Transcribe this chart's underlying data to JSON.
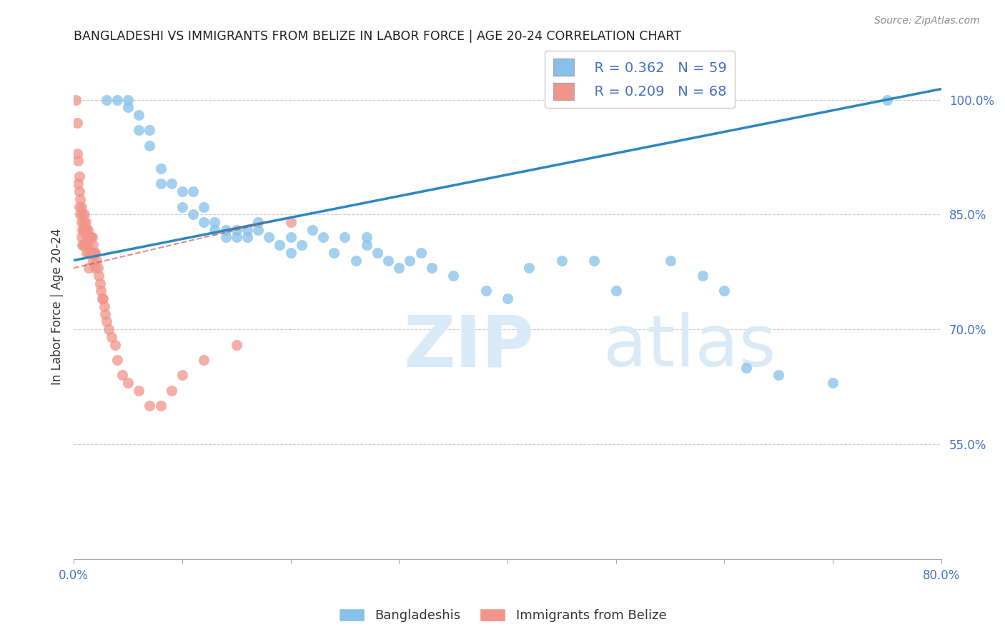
{
  "title": "BANGLADESHI VS IMMIGRANTS FROM BELIZE IN LABOR FORCE | AGE 20-24 CORRELATION CHART",
  "source": "Source: ZipAtlas.com",
  "ylabel": "In Labor Force | Age 20-24",
  "xlim": [
    0.0,
    0.8
  ],
  "ylim": [
    0.4,
    1.06
  ],
  "x_tick_left": "0.0%",
  "x_tick_right": "80.0%",
  "y_ticks": [
    0.55,
    0.7,
    0.85,
    1.0
  ],
  "y_tick_labels": [
    "55.0%",
    "70.0%",
    "85.0%",
    "100.0%"
  ],
  "legend_blue_r": "R = 0.362",
  "legend_blue_n": "N = 59",
  "legend_pink_r": "R = 0.209",
  "legend_pink_n": "N = 68",
  "legend_label_blue": "Bangladeshis",
  "legend_label_pink": "Immigrants from Belize",
  "blue_color": "#85c1e9",
  "pink_color": "#f1948a",
  "line_blue": "#2e86c1",
  "line_pink": "#cb4335",
  "blue_scatter_x": [
    0.03,
    0.04,
    0.05,
    0.05,
    0.06,
    0.06,
    0.07,
    0.07,
    0.08,
    0.08,
    0.09,
    0.1,
    0.1,
    0.11,
    0.11,
    0.12,
    0.12,
    0.13,
    0.13,
    0.14,
    0.14,
    0.15,
    0.15,
    0.16,
    0.16,
    0.17,
    0.17,
    0.18,
    0.19,
    0.2,
    0.2,
    0.21,
    0.22,
    0.23,
    0.24,
    0.25,
    0.26,
    0.27,
    0.27,
    0.28,
    0.29,
    0.3,
    0.31,
    0.32,
    0.33,
    0.35,
    0.38,
    0.4,
    0.42,
    0.45,
    0.48,
    0.5,
    0.55,
    0.58,
    0.6,
    0.62,
    0.65,
    0.7,
    0.75
  ],
  "blue_scatter_y": [
    1.0,
    1.0,
    1.0,
    0.99,
    0.98,
    0.96,
    0.96,
    0.94,
    0.91,
    0.89,
    0.89,
    0.88,
    0.86,
    0.88,
    0.85,
    0.86,
    0.84,
    0.84,
    0.83,
    0.83,
    0.82,
    0.83,
    0.82,
    0.83,
    0.82,
    0.84,
    0.83,
    0.82,
    0.81,
    0.82,
    0.8,
    0.81,
    0.83,
    0.82,
    0.8,
    0.82,
    0.79,
    0.81,
    0.82,
    0.8,
    0.79,
    0.78,
    0.79,
    0.8,
    0.78,
    0.77,
    0.75,
    0.74,
    0.78,
    0.79,
    0.79,
    0.75,
    0.79,
    0.77,
    0.75,
    0.65,
    0.64,
    0.63,
    1.0
  ],
  "pink_scatter_x": [
    0.002,
    0.003,
    0.003,
    0.004,
    0.004,
    0.005,
    0.005,
    0.005,
    0.006,
    0.006,
    0.007,
    0.007,
    0.007,
    0.008,
    0.008,
    0.008,
    0.009,
    0.009,
    0.009,
    0.01,
    0.01,
    0.01,
    0.011,
    0.011,
    0.011,
    0.012,
    0.012,
    0.012,
    0.013,
    0.013,
    0.014,
    0.014,
    0.014,
    0.015,
    0.015,
    0.016,
    0.016,
    0.017,
    0.017,
    0.018,
    0.018,
    0.019,
    0.02,
    0.02,
    0.021,
    0.022,
    0.023,
    0.024,
    0.025,
    0.026,
    0.027,
    0.028,
    0.029,
    0.03,
    0.032,
    0.035,
    0.038,
    0.04,
    0.045,
    0.05,
    0.06,
    0.07,
    0.08,
    0.09,
    0.1,
    0.12,
    0.15,
    0.2
  ],
  "pink_scatter_y": [
    1.0,
    0.97,
    0.93,
    0.92,
    0.89,
    0.9,
    0.88,
    0.86,
    0.87,
    0.85,
    0.86,
    0.84,
    0.82,
    0.85,
    0.83,
    0.81,
    0.84,
    0.83,
    0.81,
    0.85,
    0.83,
    0.81,
    0.84,
    0.83,
    0.81,
    0.83,
    0.82,
    0.8,
    0.83,
    0.81,
    0.82,
    0.8,
    0.78,
    0.82,
    0.8,
    0.82,
    0.8,
    0.82,
    0.8,
    0.81,
    0.79,
    0.8,
    0.8,
    0.78,
    0.79,
    0.78,
    0.77,
    0.76,
    0.75,
    0.74,
    0.74,
    0.73,
    0.72,
    0.71,
    0.7,
    0.69,
    0.68,
    0.66,
    0.64,
    0.63,
    0.62,
    0.6,
    0.6,
    0.62,
    0.64,
    0.66,
    0.68,
    0.84
  ]
}
